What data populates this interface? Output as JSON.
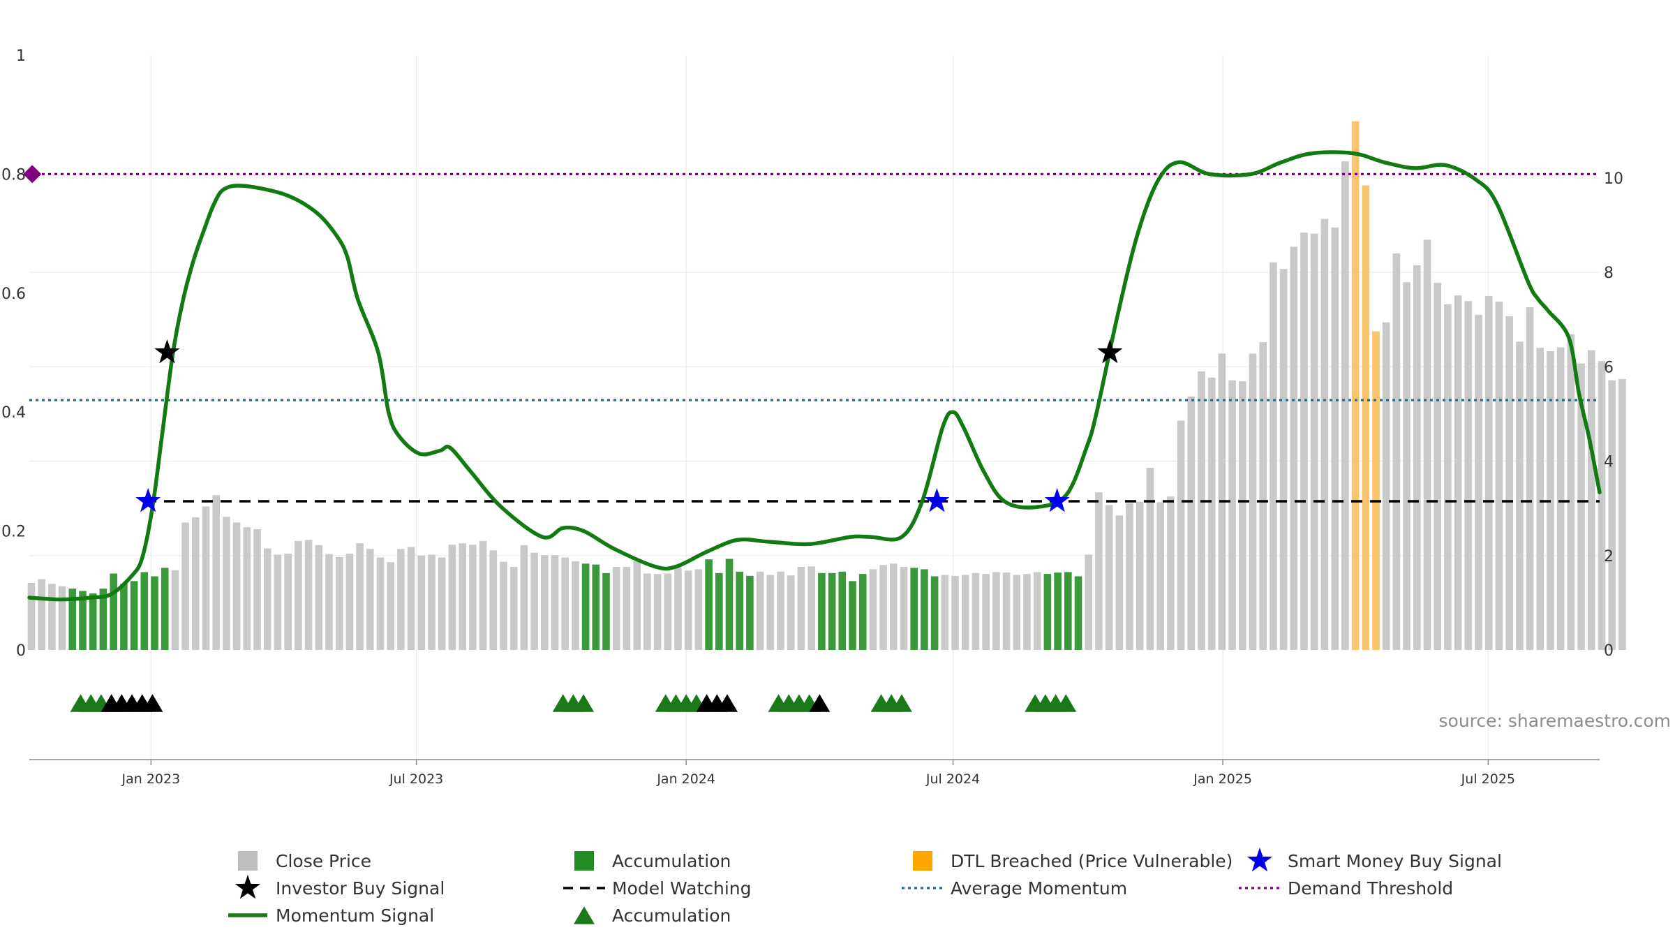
{
  "source_label": "source: sharemaestro.com",
  "chart_data": {
    "type": "bar",
    "left_axis": {
      "range": [
        0,
        1
      ],
      "ticks": [
        0,
        0.2,
        0.4,
        0.6,
        0.8,
        1
      ],
      "tick_labels": [
        "0",
        "0.2",
        "0.4",
        "0.6",
        "0.8",
        "1"
      ]
    },
    "right_axis": {
      "range": [
        0,
        12.6
      ],
      "ticks": [
        0,
        2,
        4,
        6,
        8,
        10
      ],
      "tick_labels": [
        "0",
        "2",
        "4",
        "6",
        "8",
        "10"
      ]
    },
    "x_range": [
      "2022-10-10",
      "2025-09-15"
    ],
    "x_ticks": [
      {
        "date": "2023-01-01",
        "label": "Jan 2023"
      },
      {
        "date": "2023-07-01",
        "label": "Jul 2023"
      },
      {
        "date": "2024-01-01",
        "label": "Jan 2024"
      },
      {
        "date": "2024-07-01",
        "label": "Jul 2024"
      },
      {
        "date": "2025-01-01",
        "label": "Jan 2025"
      },
      {
        "date": "2025-07-01",
        "label": "Jul 2025"
      }
    ],
    "grid": true,
    "bars_start_week": "2022-10-10",
    "close_price": [
      1.42,
      1.5,
      1.4,
      1.35,
      1.3,
      1.25,
      1.2,
      1.3,
      1.62,
      1.4,
      1.46,
      1.65,
      1.56,
      1.74,
      1.69,
      2.7,
      2.81,
      3.04,
      3.28,
      2.82,
      2.7,
      2.6,
      2.56,
      2.15,
      2.02,
      2.04,
      2.31,
      2.33,
      2.22,
      2.03,
      1.97,
      2.04,
      2.26,
      2.14,
      1.96,
      1.86,
      2.14,
      2.18,
      2.0,
      2.02,
      1.96,
      2.23,
      2.26,
      2.23,
      2.31,
      2.11,
      1.87,
      1.76,
      2.22,
      2.06,
      2.01,
      2.01,
      1.96,
      1.88,
      1.83,
      1.81,
      1.63,
      1.76,
      1.76,
      1.88,
      1.62,
      1.61,
      1.62,
      1.75,
      1.68,
      1.71,
      1.92,
      1.63,
      1.93,
      1.66,
      1.57,
      1.66,
      1.59,
      1.66,
      1.58,
      1.76,
      1.77,
      1.63,
      1.63,
      1.66,
      1.46,
      1.61,
      1.71,
      1.8,
      1.83,
      1.76,
      1.74,
      1.71,
      1.56,
      1.59,
      1.57,
      1.59,
      1.63,
      1.61,
      1.65,
      1.64,
      1.59,
      1.61,
      1.65,
      1.61,
      1.64,
      1.65,
      1.56,
      2.02,
      3.34,
      3.07,
      2.85,
      3.11,
      3.14,
      3.86,
      3.13,
      3.25,
      4.86,
      5.37,
      5.9,
      5.77,
      6.28,
      5.71,
      5.69,
      6.28,
      6.52,
      8.21,
      8.07,
      8.54,
      8.84,
      8.82,
      9.13,
      8.95,
      10.35,
      11.2,
      9.84,
      6.75,
      6.94,
      8.4,
      7.79,
      8.15,
      8.69,
      7.78,
      7.32,
      7.51,
      7.39,
      7.1,
      7.5,
      7.38,
      7.07,
      6.53,
      7.26,
      6.4,
      6.33,
      6.41,
      6.69,
      6.07,
      6.35,
      6.12,
      5.71,
      5.74
    ],
    "accumulation_bar_indices": [
      4,
      5,
      6,
      7,
      8,
      9,
      10,
      11,
      12,
      13,
      54,
      55,
      56,
      66,
      67,
      68,
      69,
      70,
      77,
      78,
      79,
      80,
      81,
      86,
      87,
      88,
      99,
      100,
      101,
      102
    ],
    "dtl_breached_indices": [
      129,
      130,
      131
    ],
    "momentum_signal": [
      [
        "2022-10-10",
        0.088
      ],
      [
        "2022-10-31",
        0.085
      ],
      [
        "2022-11-21",
        0.088
      ],
      [
        "2022-12-05",
        0.094
      ],
      [
        "2022-12-19",
        0.125
      ],
      [
        "2022-12-26",
        0.155
      ],
      [
        "2023-01-02",
        0.24
      ],
      [
        "2023-01-09",
        0.37
      ],
      [
        "2023-01-16",
        0.5
      ],
      [
        "2023-01-23",
        0.59
      ],
      [
        "2023-01-30",
        0.655
      ],
      [
        "2023-02-06",
        0.705
      ],
      [
        "2023-02-13",
        0.75
      ],
      [
        "2023-02-20",
        0.775
      ],
      [
        "2023-03-06",
        0.78
      ],
      [
        "2023-04-03",
        0.765
      ],
      [
        "2023-04-24",
        0.735
      ],
      [
        "2023-05-08",
        0.695
      ],
      [
        "2023-05-15",
        0.66
      ],
      [
        "2023-05-22",
        0.59
      ],
      [
        "2023-06-05",
        0.5
      ],
      [
        "2023-06-12",
        0.4
      ],
      [
        "2023-06-19",
        0.36
      ],
      [
        "2023-07-03",
        0.33
      ],
      [
        "2023-07-17",
        0.335
      ],
      [
        "2023-07-24",
        0.34
      ],
      [
        "2023-08-07",
        0.3
      ],
      [
        "2023-08-28",
        0.24
      ],
      [
        "2023-09-25",
        0.19
      ],
      [
        "2023-10-09",
        0.205
      ],
      [
        "2023-10-23",
        0.2
      ],
      [
        "2023-11-13",
        0.17
      ],
      [
        "2023-12-11",
        0.14
      ],
      [
        "2023-12-25",
        0.14
      ],
      [
        "2024-01-15",
        0.165
      ],
      [
        "2024-02-05",
        0.185
      ],
      [
        "2024-02-26",
        0.182
      ],
      [
        "2024-03-25",
        0.178
      ],
      [
        "2024-04-22",
        0.19
      ],
      [
        "2024-05-06",
        0.19
      ],
      [
        "2024-05-27",
        0.19
      ],
      [
        "2024-06-10",
        0.25
      ],
      [
        "2024-06-24",
        0.375
      ],
      [
        "2024-07-01",
        0.4
      ],
      [
        "2024-07-08",
        0.375
      ],
      [
        "2024-07-22",
        0.3
      ],
      [
        "2024-08-05",
        0.25
      ],
      [
        "2024-08-26",
        0.24
      ],
      [
        "2024-09-16",
        0.26
      ],
      [
        "2024-09-30",
        0.34
      ],
      [
        "2024-10-07",
        0.4
      ],
      [
        "2024-10-21",
        0.56
      ],
      [
        "2024-11-04",
        0.7
      ],
      [
        "2024-11-18",
        0.79
      ],
      [
        "2024-12-02",
        0.82
      ],
      [
        "2024-12-23",
        0.8
      ],
      [
        "2025-01-20",
        0.8
      ],
      [
        "2025-02-10",
        0.82
      ],
      [
        "2025-03-03",
        0.835
      ],
      [
        "2025-03-31",
        0.835
      ],
      [
        "2025-04-21",
        0.82
      ],
      [
        "2025-05-12",
        0.81
      ],
      [
        "2025-06-02",
        0.815
      ],
      [
        "2025-06-23",
        0.79
      ],
      [
        "2025-07-07",
        0.75
      ],
      [
        "2025-07-28",
        0.62
      ],
      [
        "2025-08-04",
        0.59
      ],
      [
        "2025-08-11",
        0.57
      ],
      [
        "2025-08-25",
        0.525
      ],
      [
        "2025-09-01",
        0.43
      ],
      [
        "2025-09-08",
        0.355
      ],
      [
        "2025-09-15",
        0.265
      ]
    ],
    "model_watching_level": 0.25,
    "model_watching_range": [
      "2022-12-28",
      "2025-09-15"
    ],
    "average_momentum": 0.42,
    "demand_threshold": 0.8,
    "investor_buy_signals": [
      [
        "2023-01-12",
        0.5
      ],
      [
        "2024-10-16",
        0.5
      ]
    ],
    "smart_money_buy_signals": [
      [
        "2022-12-30",
        0.25
      ],
      [
        "2024-06-20",
        0.25
      ],
      [
        "2024-09-10",
        0.25
      ]
    ],
    "demand_marker": [
      "2022-10-12",
      0.8
    ],
    "accumulation_markers": {
      "green": [
        "2022-11-14",
        "2022-11-21",
        "2022-11-28",
        "2022-12-05",
        "2023-10-09",
        "2023-10-16",
        "2023-10-23",
        "2023-12-18",
        "2023-12-25",
        "2024-01-01",
        "2024-01-08",
        "2024-03-04",
        "2024-03-11",
        "2024-03-18",
        "2024-03-25",
        "2024-05-13",
        "2024-05-20",
        "2024-05-27",
        "2024-08-26",
        "2024-09-02",
        "2024-09-09",
        "2024-09-16"
      ],
      "black": [
        "2022-12-05",
        "2022-12-12",
        "2022-12-19",
        "2022-12-26",
        "2023-01-02",
        "2024-01-15",
        "2024-01-22",
        "2024-01-29",
        "2024-04-01"
      ]
    },
    "legend": [
      {
        "key": "close",
        "label": "Close Price",
        "swatch": "square",
        "color": "#bdbdbd"
      },
      {
        "key": "accum_bar",
        "label": "Accumulation",
        "swatch": "square",
        "color": "#228b22"
      },
      {
        "key": "dtl",
        "label": "DTL Breached (Price Vulnerable)",
        "swatch": "square",
        "color": "#ffa500"
      },
      {
        "key": "smart",
        "label": "Smart Money Buy Signal",
        "swatch": "star",
        "color": "#0000ee"
      },
      {
        "key": "investor",
        "label": "Investor Buy Signal",
        "swatch": "star",
        "color": "#000000"
      },
      {
        "key": "watching",
        "label": "Model Watching",
        "swatch": "dash",
        "color": "#000000"
      },
      {
        "key": "avg",
        "label": "Average Momentum",
        "swatch": "dot",
        "color": "#2b6a8a"
      },
      {
        "key": "demand",
        "label": "Demand Threshold",
        "swatch": "dot",
        "color": "#800080"
      },
      {
        "key": "momentum",
        "label": "Momentum Signal",
        "swatch": "line",
        "color": "#1a7a1a"
      },
      {
        "key": "accum_tri",
        "label": "Accumulation",
        "swatch": "triangle",
        "color": "#1a7a1a"
      }
    ],
    "colors": {
      "close": "#c9c9c9",
      "accumulation": "#3a9a3a",
      "dtl": "#f9c46b",
      "momentum": "#117a11",
      "grid": "#ebebeb",
      "axis": "#888888"
    }
  }
}
